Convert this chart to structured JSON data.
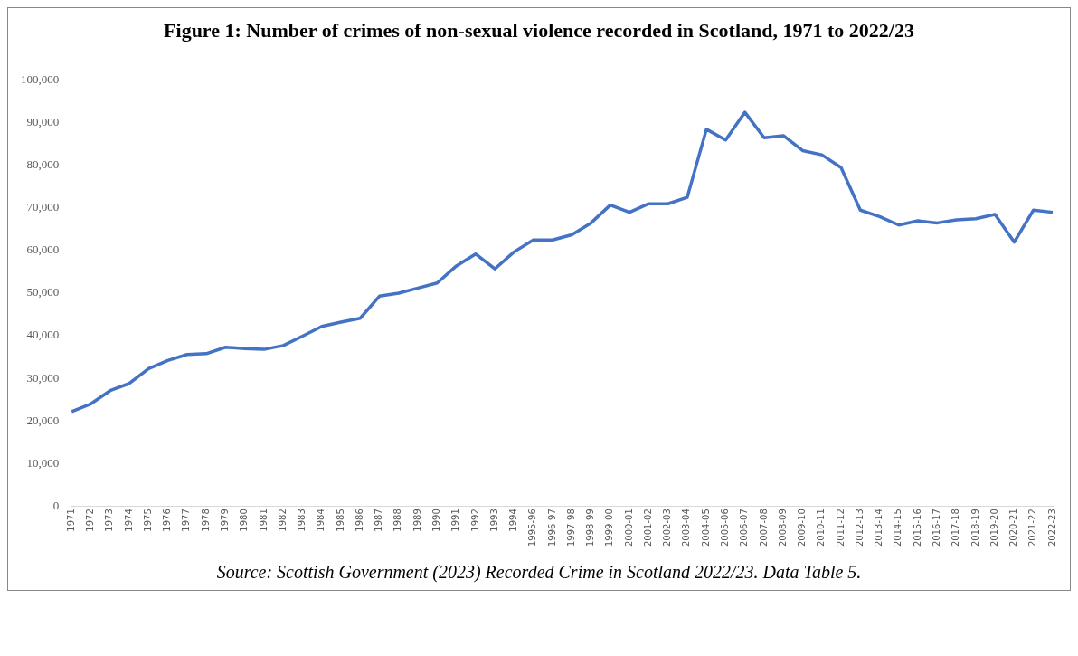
{
  "chart_data": {
    "type": "line",
    "title": "Figure 1: Number of crimes of non-sexual violence recorded in Scotland, 1971 to 2022/23",
    "categories": [
      "1971",
      "1972",
      "1973",
      "1974",
      "1975",
      "1976",
      "1977",
      "1978",
      "1979",
      "1980",
      "1981",
      "1982",
      "1983",
      "1984",
      "1985",
      "1986",
      "1987",
      "1988",
      "1989",
      "1990",
      "1991",
      "1992",
      "1993",
      "1994",
      "1995-96",
      "1996-97",
      "1997-98",
      "1998-99",
      "1999-00",
      "2000-01",
      "2001-02",
      "2002-03",
      "2003-04",
      "2004-05",
      "2005-06",
      "2006-07",
      "2007-08",
      "2008-09",
      "2009-10",
      "2010-11",
      "2011-12",
      "2012-13",
      "2013-14",
      "2014-15",
      "2015-16",
      "2016-17",
      "2017-18",
      "2018-19",
      "2019-20",
      "2020-21",
      "2021-22",
      "2022-23"
    ],
    "series": [
      {
        "color": "#4472c4",
        "values": [
          22200,
          24000,
          27100,
          28800,
          32300,
          34200,
          35600,
          35800,
          37300,
          37000,
          36800,
          37700,
          39900,
          42200,
          43200,
          44100,
          49300,
          50000,
          51200,
          52400,
          56400,
          59200,
          55700,
          59700,
          62500,
          62500,
          63700,
          66500,
          70700,
          69000,
          71000,
          71000,
          72500,
          88500,
          86000,
          92500,
          86500,
          87000,
          83500,
          82500,
          79500,
          69500,
          68000,
          66000,
          67000,
          66500,
          67200,
          67500,
          68500,
          62000,
          69500,
          69000
        ]
      }
    ],
    "ylim": [
      0,
      100000
    ],
    "yticks": [
      0,
      {
        "value": 10000,
        "label": "10,000"
      },
      {
        "value": 20000,
        "label": "20,000"
      },
      {
        "value": 30000,
        "label": "30,000"
      },
      {
        "value": 40000,
        "label": "40,000"
      },
      {
        "value": 50000,
        "label": "50,000"
      },
      {
        "value": 60000,
        "label": "60,000"
      },
      {
        "value": 70000,
        "label": "70,000"
      },
      {
        "value": 80000,
        "label": "80,000"
      },
      {
        "value": 90000,
        "label": "90,000"
      },
      {
        "value": 100000,
        "label": "100,000"
      }
    ],
    "grid": false,
    "legend": false,
    "marker": "none",
    "line_style": "solid",
    "annotations": [
      "Source: Scottish Government (2023) Recorded Crime in Scotland 2022/23. Data Table 5."
    ]
  }
}
